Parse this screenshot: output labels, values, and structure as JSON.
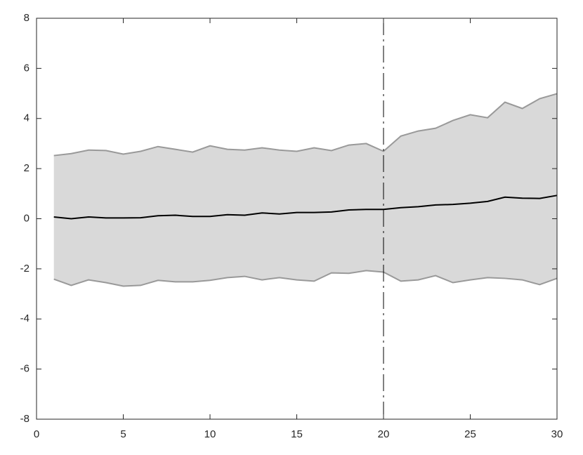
{
  "chart_data": {
    "type": "line",
    "x": [
      1,
      2,
      3,
      4,
      5,
      6,
      7,
      8,
      9,
      10,
      11,
      12,
      13,
      14,
      15,
      16,
      17,
      18,
      19,
      20,
      21,
      22,
      23,
      24,
      25,
      26,
      27,
      28,
      29,
      30
    ],
    "series": [
      {
        "color": "#000000",
        "values": [
          0.07,
          0.0,
          0.07,
          0.03,
          0.03,
          0.04,
          0.12,
          0.14,
          0.09,
          0.09,
          0.16,
          0.14,
          0.23,
          0.19,
          0.25,
          0.25,
          0.27,
          0.35,
          0.37,
          0.37,
          0.44,
          0.48,
          0.55,
          0.57,
          0.62,
          0.69,
          0.86,
          0.82,
          0.81,
          0.93
        ]
      }
    ],
    "band": {
      "fill": "#d9d9d9",
      "edge_color": "#999999",
      "upper": [
        2.52,
        2.6,
        2.74,
        2.72,
        2.58,
        2.69,
        2.88,
        2.77,
        2.66,
        2.91,
        2.77,
        2.74,
        2.83,
        2.74,
        2.69,
        2.83,
        2.72,
        2.94,
        3.0,
        2.69,
        3.3,
        3.5,
        3.61,
        3.92,
        4.15,
        4.03,
        4.65,
        4.4,
        4.79,
        4.99
      ],
      "lower": [
        -2.41,
        -2.66,
        -2.44,
        -2.55,
        -2.69,
        -2.66,
        -2.46,
        -2.52,
        -2.52,
        -2.46,
        -2.35,
        -2.3,
        -2.44,
        -2.35,
        -2.44,
        -2.49,
        -2.16,
        -2.18,
        -2.07,
        -2.13,
        -2.49,
        -2.44,
        -2.27,
        -2.55,
        -2.44,
        -2.35,
        -2.38,
        -2.44,
        -2.63,
        -2.38
      ]
    },
    "vline": 20,
    "xlim": [
      0,
      30
    ],
    "xticks": [
      0,
      5,
      10,
      15,
      20,
      25,
      30
    ],
    "ylim": [
      -8,
      8
    ],
    "yticks": [
      -8,
      -6,
      -4,
      -2,
      0,
      2,
      4,
      6,
      8
    ]
  }
}
